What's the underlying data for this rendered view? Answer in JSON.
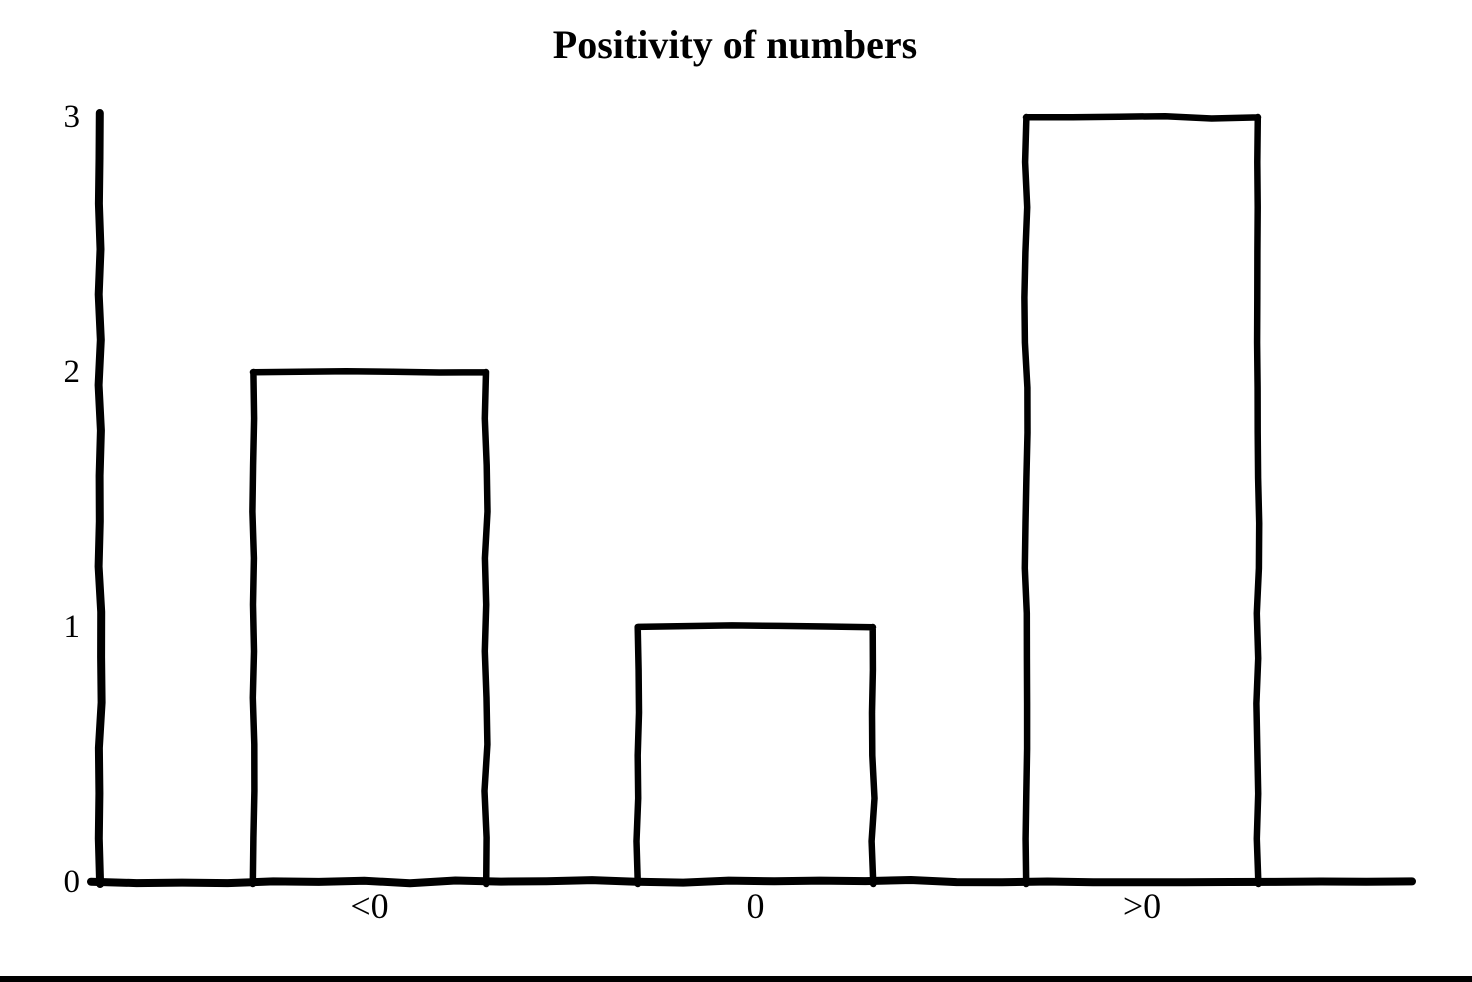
{
  "page": {
    "background": "#ffffff",
    "divider_color": "#000000"
  },
  "chart_data": {
    "type": "bar",
    "title": "Positivity of numbers",
    "categories": [
      "<0",
      "0",
      ">0"
    ],
    "values": [
      2,
      1,
      3
    ],
    "xlabel": "",
    "ylabel": "",
    "ylim": [
      0,
      3
    ],
    "yticks": [
      0,
      1,
      2,
      3
    ],
    "grid": false,
    "legend": false,
    "style": "hand-drawn",
    "stroke_color": "#000000",
    "bar_fill": "#ffffff",
    "background_color": "#ffffff"
  }
}
